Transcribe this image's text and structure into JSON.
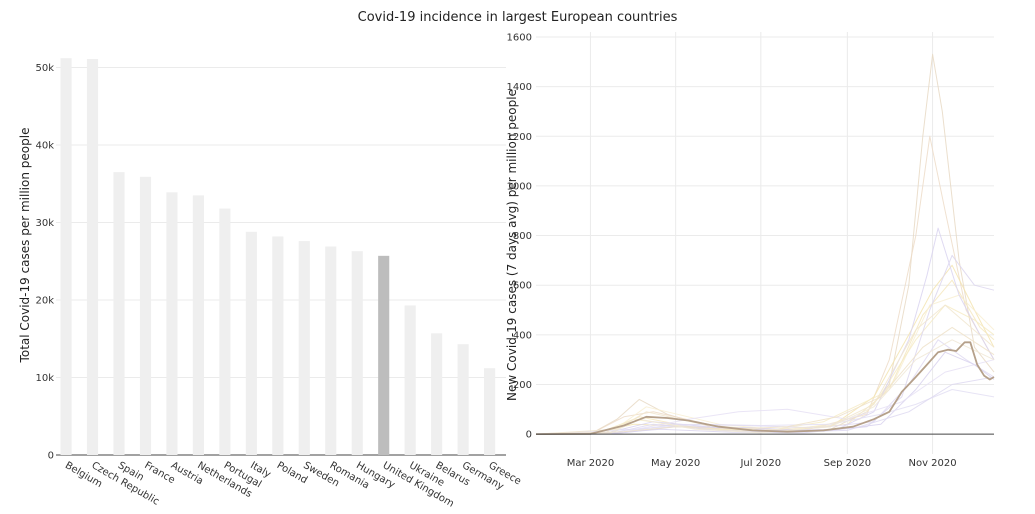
{
  "title": "Covid-19 incidence in largest European countries",
  "chart_data": [
    {
      "type": "bar",
      "ylabel": "Total Covid-19 cases per million people",
      "ylim": [
        0,
        52000
      ],
      "yticks": [
        0,
        10000,
        20000,
        30000,
        40000,
        50000
      ],
      "ytick_labels": [
        "0",
        "10k",
        "20k",
        "30k",
        "40k",
        "50k"
      ],
      "categories": [
        "Belgium",
        "Czech Republic",
        "Spain",
        "France",
        "Austria",
        "Netherlands",
        "Portugal",
        "Italy",
        "Poland",
        "Sweden",
        "Romania",
        "Hungary",
        "United Kingdom",
        "Ukraine",
        "Belarus",
        "Germany",
        "Greece"
      ],
      "values": [
        51200,
        51100,
        36500,
        35900,
        33900,
        33500,
        31800,
        28800,
        28200,
        27600,
        26900,
        26300,
        25700,
        19300,
        15700,
        14300,
        11200
      ],
      "highlight": "United Kingdom",
      "colors": {
        "bar": "#efefef",
        "highlight": "#bdbdbd"
      }
    },
    {
      "type": "line",
      "ylabel": "New Covid-19 cases (7 days avg) per million people",
      "ylim": [
        -80,
        1620
      ],
      "yticks": [
        0,
        200,
        400,
        600,
        800,
        1000,
        1200,
        1400,
        1600
      ],
      "xlim": [
        "2020-01-22",
        "2020-12-15"
      ],
      "xticks": [
        "2020-03-01",
        "2020-05-01",
        "2020-07-01",
        "2020-09-01",
        "2020-11-01"
      ],
      "xtick_labels": [
        "Mar 2020",
        "May 2020",
        "Jul 2020",
        "Sep 2020",
        "Nov 2020"
      ],
      "highlight": "United Kingdom",
      "colors": {
        "highlight": "#b5a08a",
        "zero_line": "#444444"
      },
      "series": [
        {
          "color": "#e8d9c4",
          "x": [
            "2020-01-22",
            "2020-03-01",
            "2020-03-20",
            "2020-04-05",
            "2020-04-25",
            "2020-06-01",
            "2020-07-15",
            "2020-08-20",
            "2020-09-15",
            "2020-10-01",
            "2020-10-15",
            "2020-10-25",
            "2020-11-01",
            "2020-11-08",
            "2020-11-20",
            "2020-12-01",
            "2020-12-15"
          ],
          "y": [
            0,
            1,
            60,
            140,
            80,
            20,
            8,
            20,
            90,
            200,
            600,
            1200,
            1530,
            1300,
            700,
            350,
            250
          ]
        },
        {
          "color": "#eddcc8",
          "x": [
            "2020-01-22",
            "2020-03-01",
            "2020-03-25",
            "2020-04-15",
            "2020-06-01",
            "2020-08-01",
            "2020-09-15",
            "2020-10-01",
            "2020-10-20",
            "2020-10-30",
            "2020-11-10",
            "2020-11-25",
            "2020-12-15"
          ],
          "y": [
            0,
            1,
            70,
            90,
            30,
            15,
            80,
            300,
            800,
            1200,
            900,
            500,
            300
          ]
        },
        {
          "color": "#f3e4b0",
          "x": [
            "2020-01-22",
            "2020-03-01",
            "2020-04-01",
            "2020-05-15",
            "2020-07-01",
            "2020-08-20",
            "2020-09-20",
            "2020-10-15",
            "2020-11-01",
            "2020-11-15",
            "2020-12-01",
            "2020-12-15"
          ],
          "y": [
            0,
            1,
            40,
            30,
            10,
            30,
            150,
            400,
            580,
            680,
            500,
            350
          ]
        },
        {
          "color": "#f5e8bf",
          "x": [
            "2020-01-22",
            "2020-03-10",
            "2020-04-05",
            "2020-05-20",
            "2020-07-10",
            "2020-09-01",
            "2020-10-01",
            "2020-10-25",
            "2020-11-15",
            "2020-12-05",
            "2020-12-15"
          ],
          "y": [
            0,
            2,
            70,
            20,
            8,
            40,
            180,
            480,
            620,
            430,
            380
          ]
        },
        {
          "color": "#f8efd2",
          "x": [
            "2020-01-22",
            "2020-03-15",
            "2020-04-10",
            "2020-06-01",
            "2020-07-20",
            "2020-09-10",
            "2020-10-05",
            "2020-10-30",
            "2020-11-20",
            "2020-12-15"
          ],
          "y": [
            0,
            5,
            110,
            40,
            15,
            60,
            220,
            520,
            560,
            420
          ]
        },
        {
          "color": "#f6ebc6",
          "x": [
            "2020-01-22",
            "2020-03-05",
            "2020-04-01",
            "2020-05-15",
            "2020-07-01",
            "2020-08-15",
            "2020-09-25",
            "2020-10-20",
            "2020-11-10",
            "2020-12-01",
            "2020-12-15"
          ],
          "y": [
            0,
            1,
            60,
            25,
            10,
            50,
            160,
            380,
            520,
            460,
            400
          ]
        },
        {
          "color": "#d9d4f0",
          "x": [
            "2020-01-22",
            "2020-03-10",
            "2020-04-15",
            "2020-06-01",
            "2020-07-15",
            "2020-08-25",
            "2020-09-20",
            "2020-10-15",
            "2020-10-28",
            "2020-11-05",
            "2020-11-20",
            "2020-12-05",
            "2020-12-15"
          ],
          "y": [
            0,
            1,
            50,
            25,
            15,
            20,
            90,
            380,
            640,
            830,
            560,
            400,
            300
          ]
        },
        {
          "color": "#dcd6ef",
          "x": [
            "2020-01-22",
            "2020-03-15",
            "2020-04-20",
            "2020-06-10",
            "2020-08-01",
            "2020-09-15",
            "2020-10-10",
            "2020-10-30",
            "2020-11-15",
            "2020-12-01",
            "2020-12-15"
          ],
          "y": [
            0,
            2,
            20,
            8,
            6,
            30,
            150,
            500,
            720,
            600,
            580
          ]
        },
        {
          "color": "#e0dbf2",
          "x": [
            "2020-01-22",
            "2020-03-20",
            "2020-05-01",
            "2020-06-20",
            "2020-08-10",
            "2020-09-20",
            "2020-10-15",
            "2020-11-05",
            "2020-11-25",
            "2020-12-15"
          ],
          "y": [
            0,
            5,
            40,
            35,
            25,
            50,
            200,
            380,
            300,
            230
          ]
        },
        {
          "color": "#d8d2ee",
          "x": [
            "2020-01-22",
            "2020-03-20",
            "2020-05-01",
            "2020-06-25",
            "2020-08-15",
            "2020-09-25",
            "2020-10-20",
            "2020-11-10",
            "2020-12-01",
            "2020-12-15"
          ],
          "y": [
            0,
            3,
            30,
            25,
            12,
            40,
            180,
            330,
            280,
            220
          ]
        },
        {
          "color": "#e6e1f4",
          "x": [
            "2020-01-22",
            "2020-03-25",
            "2020-05-10",
            "2020-06-15",
            "2020-07-20",
            "2020-09-01",
            "2020-10-10",
            "2020-11-10",
            "2020-12-15"
          ],
          "y": [
            0,
            10,
            60,
            90,
            100,
            60,
            130,
            250,
            300
          ]
        },
        {
          "color": "#e3dff3",
          "x": [
            "2020-01-22",
            "2020-04-01",
            "2020-05-20",
            "2020-07-01",
            "2020-08-20",
            "2020-09-25",
            "2020-10-20",
            "2020-11-15",
            "2020-12-15"
          ],
          "y": [
            0,
            20,
            40,
            35,
            40,
            80,
            120,
            180,
            150
          ]
        },
        {
          "color": "#ded9f1",
          "x": [
            "2020-01-22",
            "2020-03-15",
            "2020-04-15",
            "2020-06-01",
            "2020-07-15",
            "2020-09-01",
            "2020-10-15",
            "2020-11-15",
            "2020-12-15"
          ],
          "y": [
            0,
            2,
            40,
            15,
            8,
            15,
            90,
            200,
            230
          ]
        },
        {
          "color": "#f1e6cf",
          "x": [
            "2020-01-22",
            "2020-03-20",
            "2020-04-10",
            "2020-05-20",
            "2020-07-01",
            "2020-08-20",
            "2020-09-20",
            "2020-10-20",
            "2020-11-10",
            "2020-12-15"
          ],
          "y": [
            0,
            20,
            90,
            40,
            15,
            35,
            120,
            420,
            520,
            350
          ]
        },
        {
          "color": "#eee2c9",
          "x": [
            "2020-01-22",
            "2020-03-25",
            "2020-05-01",
            "2020-06-10",
            "2020-07-20",
            "2020-08-25",
            "2020-09-25",
            "2020-10-25",
            "2020-11-15",
            "2020-12-15"
          ],
          "y": [
            0,
            10,
            30,
            20,
            30,
            70,
            150,
            350,
            430,
            320
          ]
        },
        {
          "color": "#f0e8d6",
          "x": [
            "2020-01-22",
            "2020-03-15",
            "2020-04-05",
            "2020-05-15",
            "2020-07-01",
            "2020-08-20",
            "2020-09-20",
            "2020-10-20",
            "2020-11-15",
            "2020-12-15"
          ],
          "y": [
            0,
            3,
            60,
            20,
            6,
            30,
            110,
            300,
            380,
            300
          ]
        },
        {
          "name": "United Kingdom",
          "color": "#b5a08a",
          "highlight": true,
          "x": [
            "2020-01-22",
            "2020-03-01",
            "2020-03-25",
            "2020-04-10",
            "2020-04-25",
            "2020-05-10",
            "2020-06-01",
            "2020-06-25",
            "2020-07-20",
            "2020-08-15",
            "2020-09-05",
            "2020-09-20",
            "2020-10-01",
            "2020-10-10",
            "2020-10-20",
            "2020-10-28",
            "2020-11-05",
            "2020-11-12",
            "2020-11-18",
            "2020-11-24",
            "2020-11-28",
            "2020-12-03",
            "2020-12-08",
            "2020-12-12",
            "2020-12-15"
          ],
          "y": [
            0,
            1,
            35,
            70,
            65,
            55,
            30,
            15,
            10,
            15,
            30,
            60,
            90,
            170,
            230,
            280,
            330,
            340,
            335,
            370,
            370,
            280,
            235,
            220,
            230
          ]
        }
      ]
    }
  ]
}
